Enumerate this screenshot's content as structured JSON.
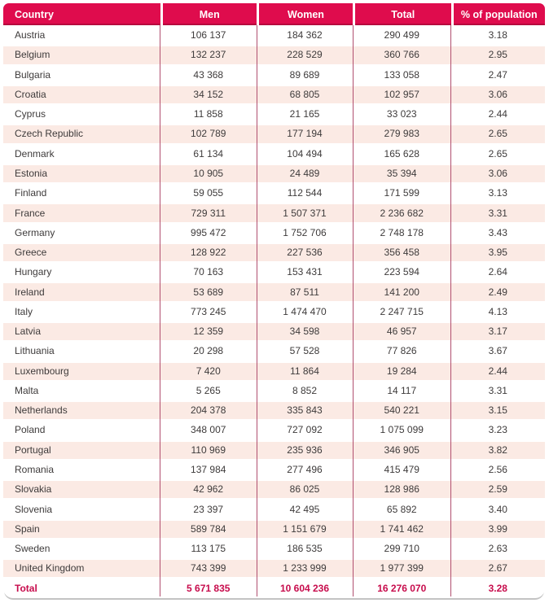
{
  "chart_data": {
    "type": "table",
    "columns": [
      "Country",
      "Men",
      "Women",
      "Total",
      "% of population"
    ],
    "rows": [
      [
        "Austria",
        "106 137",
        "184 362",
        "290 499",
        "3.18"
      ],
      [
        "Belgium",
        "132 237",
        "228 529",
        "360 766",
        "2.95"
      ],
      [
        "Bulgaria",
        "43 368",
        "89 689",
        "133 058",
        "2.47"
      ],
      [
        "Croatia",
        "34 152",
        "68 805",
        "102 957",
        "3.06"
      ],
      [
        "Cyprus",
        "11 858",
        "21 165",
        "33 023",
        "2.44"
      ],
      [
        "Czech Republic",
        "102 789",
        "177 194",
        "279 983",
        "2.65"
      ],
      [
        "Denmark",
        "61 134",
        "104 494",
        "165 628",
        "2.65"
      ],
      [
        "Estonia",
        "10 905",
        "24 489",
        "35 394",
        "3.06"
      ],
      [
        "Finland",
        "59 055",
        "112 544",
        "171 599",
        "3.13"
      ],
      [
        "France",
        "729 311",
        "1 507 371",
        "2 236 682",
        "3.31"
      ],
      [
        "Germany",
        "995 472",
        "1 752 706",
        "2 748 178",
        "3.43"
      ],
      [
        "Greece",
        "128 922",
        "227 536",
        "356 458",
        "3.95"
      ],
      [
        "Hungary",
        "70 163",
        "153 431",
        "223 594",
        "2.64"
      ],
      [
        "Ireland",
        "53 689",
        "87 511",
        "141 200",
        "2.49"
      ],
      [
        "Italy",
        "773 245",
        "1 474 470",
        "2 247 715",
        "4.13"
      ],
      [
        "Latvia",
        "12 359",
        "34 598",
        "46 957",
        "3.17"
      ],
      [
        "Lithuania",
        "20 298",
        "57 528",
        "77 826",
        "3.67"
      ],
      [
        "Luxembourg",
        "7 420",
        "11 864",
        "19 284",
        "2.44"
      ],
      [
        "Malta",
        "5 265",
        "8 852",
        "14 117",
        "3.31"
      ],
      [
        "Netherlands",
        "204 378",
        "335 843",
        "540 221",
        "3.15"
      ],
      [
        "Poland",
        "348 007",
        "727 092",
        "1 075 099",
        "3.23"
      ],
      [
        "Portugal",
        "110 969",
        "235 936",
        "346 905",
        "3.82"
      ],
      [
        "Romania",
        "137 984",
        "277 496",
        "415 479",
        "2.56"
      ],
      [
        "Slovakia",
        "42 962",
        "86 025",
        "128 986",
        "2.59"
      ],
      [
        "Slovenia",
        "23 397",
        "42 495",
        "65 892",
        "3.40"
      ],
      [
        "Spain",
        "589 784",
        "1 151 679",
        "1 741 462",
        "3.99"
      ],
      [
        "Sweden",
        "113 175",
        "186 535",
        "299 710",
        "2.63"
      ],
      [
        "United Kingdom",
        "743 399",
        "1 233 999",
        "1 977 399",
        "2.67"
      ]
    ],
    "total_row": [
      "Total",
      "5 671 835",
      "10 604 236",
      "16 276 070",
      "3.28"
    ],
    "layout": {
      "grid": "off",
      "striped_rows": true,
      "total_row_emphasis": "bold crimson"
    }
  },
  "colors": {
    "header_bg": "#df0c4d",
    "header_text": "#ffffff",
    "stripe_bg": "#fbeae4",
    "separator_line": "#b14f6f",
    "body_text": "#3e3b3b",
    "total_text": "#c70c4c",
    "bottom_border": "#c3c3c3"
  }
}
